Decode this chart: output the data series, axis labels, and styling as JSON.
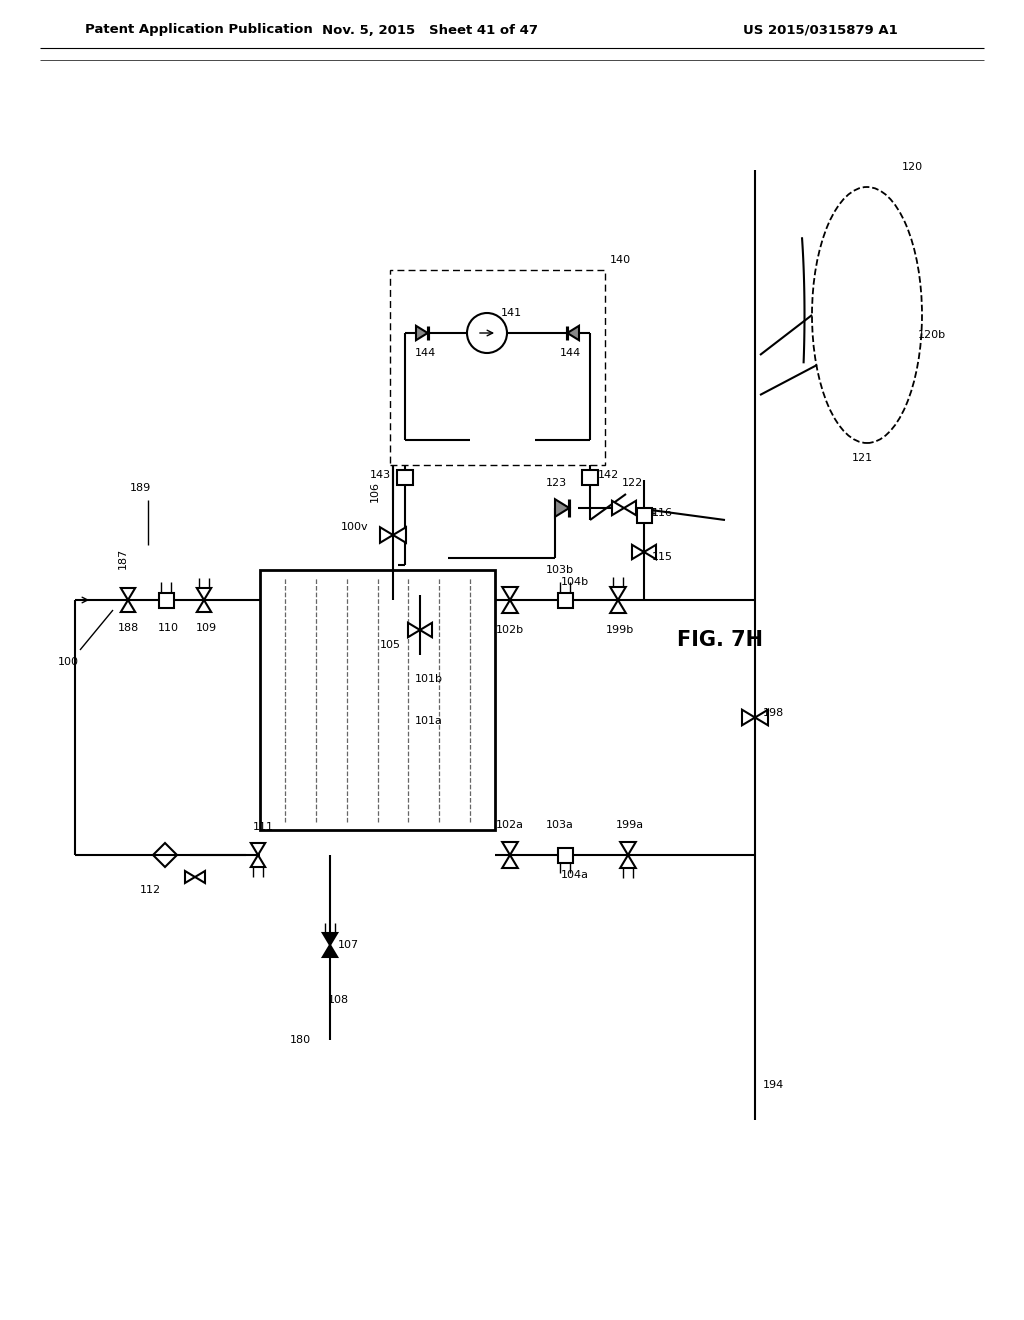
{
  "title_left": "Patent Application Publication",
  "title_mid": "Nov. 5, 2015   Sheet 41 of 47",
  "title_right": "US 2015/0315879 A1",
  "fig_label": "FIG. 7H",
  "bg_color": "#ffffff",
  "line_color": "#000000"
}
